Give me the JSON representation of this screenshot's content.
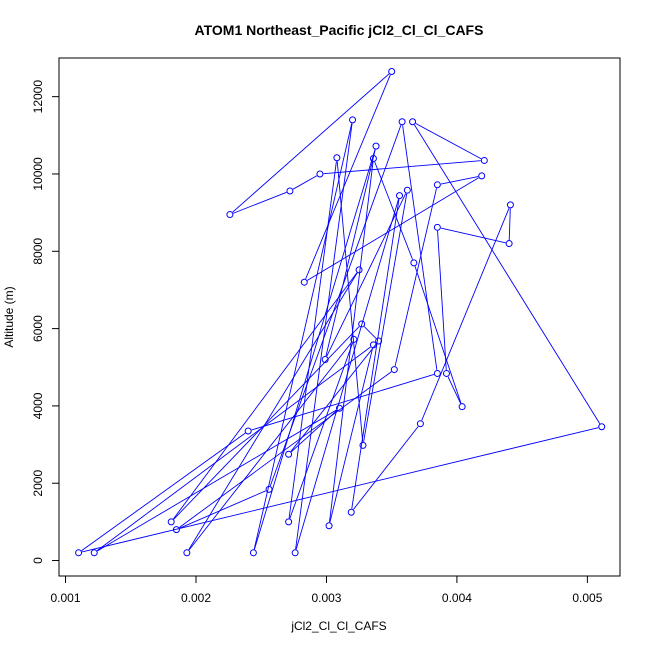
{
  "chart_data": {
    "type": "line",
    "title": "ATOM1 Northeast_Pacific jCl2_Cl_Cl_CAFS",
    "xlabel": "jCl2_Cl_Cl_CAFS",
    "ylabel": "Altitude (m)",
    "xlim": [
      0.00095,
      0.00525
    ],
    "ylim": [
      -400,
      13000
    ],
    "x_ticks": [
      0.001,
      0.002,
      0.003,
      0.004,
      0.005
    ],
    "x_tick_labels": [
      "0.001",
      "0.002",
      "0.003",
      "0.004",
      "0.005"
    ],
    "y_ticks": [
      0,
      2000,
      4000,
      6000,
      8000,
      10000,
      12000
    ],
    "y_tick_labels": [
      "0",
      "2000",
      "4000",
      "6000",
      "8000",
      "10000",
      "12000"
    ],
    "grid": false,
    "series": [
      {
        "color": "#0000ff",
        "marker": "open-circle",
        "points": [
          [
            0.00226,
            8950
          ],
          [
            0.00272,
            9560
          ],
          [
            0.00295,
            10000
          ],
          [
            0.00421,
            10350
          ],
          [
            0.00366,
            11350
          ],
          [
            0.00511,
            3460
          ],
          [
            0.0011,
            200
          ],
          [
            0.0024,
            3350
          ],
          [
            0.00385,
            4840
          ],
          [
            0.00358,
            11350
          ],
          [
            0.00256,
            1840
          ],
          [
            0.00185,
            800
          ],
          [
            0.00352,
            4940
          ],
          [
            0.00385,
            9720
          ],
          [
            0.00419,
            9950
          ],
          [
            0.00283,
            7200
          ],
          [
            0.0035,
            12650
          ],
          [
            0.00226,
            8950
          ]
        ]
      },
      {
        "color": "#0000ff",
        "marker": "open-circle",
        "points": [
          [
            0.00122,
            200
          ],
          [
            0.00336,
            5580
          ],
          [
            0.00302,
            900
          ],
          [
            0.00336,
            10400
          ],
          [
            0.00367,
            7700
          ],
          [
            0.00404,
            3980
          ],
          [
            0.00392,
            4840
          ],
          [
            0.00385,
            8620
          ],
          [
            0.0044,
            8200
          ],
          [
            0.00441,
            9200
          ],
          [
            0.00372,
            3540
          ],
          [
            0.00319,
            1250
          ],
          [
            0.00356,
            9440
          ],
          [
            0.00276,
            200
          ],
          [
            0.0032,
            11400
          ],
          [
            0.00244,
            200
          ],
          [
            0.00338,
            10720
          ],
          [
            0.00299,
            5200
          ],
          [
            0.00362,
            9580
          ],
          [
            0.00328,
            2980
          ],
          [
            0.00308,
            10420
          ],
          [
            0.00271,
            1000
          ],
          [
            0.00321,
            5720
          ],
          [
            0.00193,
            200
          ],
          [
            0.00325,
            7520
          ],
          [
            0.00181,
            1000
          ],
          [
            0.00327,
            6120
          ],
          [
            0.0034,
            5680
          ],
          [
            0.00271,
            2750
          ],
          [
            0.0031,
            3940
          ],
          [
            0.00122,
            200
          ]
        ]
      }
    ]
  }
}
